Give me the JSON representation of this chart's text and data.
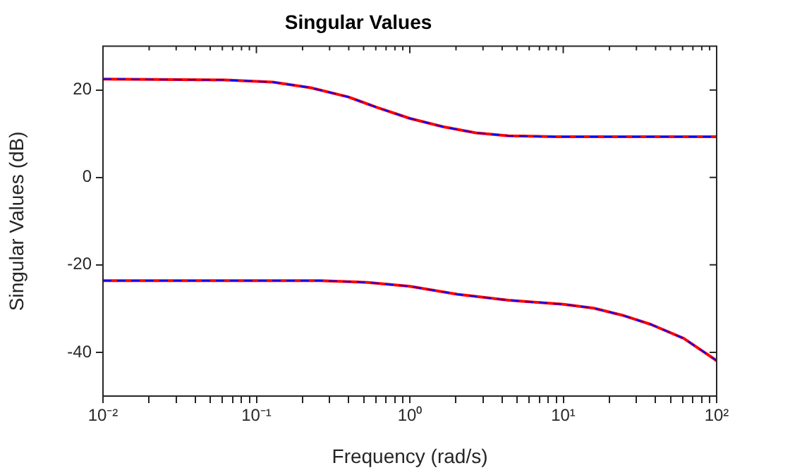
{
  "chart_data": {
    "type": "line",
    "title": "Singular Values",
    "xlabel": "Frequency (rad/s)",
    "ylabel": "Singular Values (dB)",
    "log": "x",
    "grid": false,
    "legend": false,
    "marker": "none",
    "xlim": [
      0.01,
      100
    ],
    "ylim": [
      -50,
      30
    ],
    "xticks": [
      {
        "value": 0.01,
        "label": "10⁻²"
      },
      {
        "value": 0.02,
        "label": null
      },
      {
        "value": 0.03,
        "label": null
      },
      {
        "value": 0.04,
        "label": null
      },
      {
        "value": 0.05,
        "label": null
      },
      {
        "value": 0.06,
        "label": null
      },
      {
        "value": 0.07,
        "label": null
      },
      {
        "value": 0.08,
        "label": null
      },
      {
        "value": 0.09,
        "label": null
      },
      {
        "value": 0.1,
        "label": "10⁻¹"
      },
      {
        "value": 0.2,
        "label": null
      },
      {
        "value": 0.3,
        "label": null
      },
      {
        "value": 0.4,
        "label": null
      },
      {
        "value": 0.5,
        "label": null
      },
      {
        "value": 0.6,
        "label": null
      },
      {
        "value": 0.7,
        "label": null
      },
      {
        "value": 0.8,
        "label": null
      },
      {
        "value": 0.9,
        "label": null
      },
      {
        "value": 1,
        "label": "10⁰"
      },
      {
        "value": 2,
        "label": null
      },
      {
        "value": 3,
        "label": null
      },
      {
        "value": 4,
        "label": null
      },
      {
        "value": 5,
        "label": null
      },
      {
        "value": 6,
        "label": null
      },
      {
        "value": 7,
        "label": null
      },
      {
        "value": 8,
        "label": null
      },
      {
        "value": 9,
        "label": null
      },
      {
        "value": 10,
        "label": "10¹"
      },
      {
        "value": 20,
        "label": null
      },
      {
        "value": 30,
        "label": null
      },
      {
        "value": 40,
        "label": null
      },
      {
        "value": 50,
        "label": null
      },
      {
        "value": 60,
        "label": null
      },
      {
        "value": 70,
        "label": null
      },
      {
        "value": 80,
        "label": null
      },
      {
        "value": 90,
        "label": null
      },
      {
        "value": 100,
        "label": "10²"
      }
    ],
    "yticks": [
      -40,
      -20,
      0,
      20
    ],
    "series": [
      {
        "color": "#ff0000",
        "line_style": "solid",
        "x": [
          0.01,
          0.063,
          0.128,
          0.226,
          0.398,
          0.61,
          1,
          1.64,
          2.69,
          4.4,
          8.9,
          100
        ],
        "values": [
          22.5,
          22.3,
          21.8,
          20.5,
          18.4,
          16.0,
          13.5,
          11.6,
          10.2,
          9.5,
          9.3,
          9.3
        ]
      },
      {
        "color": "#ff0000",
        "line_style": "solid",
        "x": [
          0.01,
          0.26,
          0.53,
          1,
          2.03,
          4.4,
          10,
          15.8,
          24.2,
          37.2,
          61,
          100
        ],
        "values": [
          -23.6,
          -23.6,
          -24.0,
          -24.9,
          -26.7,
          -28.1,
          -29.0,
          -29.9,
          -31.5,
          -33.6,
          -36.8,
          -41.9
        ]
      },
      {
        "color": "#0000ff",
        "line_style": "dashed",
        "x": [
          0.01,
          0.063,
          0.128,
          0.226,
          0.398,
          0.61,
          1,
          1.64,
          2.69,
          4.4,
          8.9,
          100
        ],
        "values": [
          22.5,
          22.3,
          21.8,
          20.5,
          18.4,
          16.0,
          13.5,
          11.6,
          10.2,
          9.5,
          9.3,
          9.3
        ]
      },
      {
        "color": "#0000ff",
        "line_style": "dashed",
        "x": [
          0.01,
          0.26,
          0.53,
          1,
          2.03,
          4.4,
          10,
          15.8,
          24.2,
          37.2,
          61,
          100
        ],
        "values": [
          -23.6,
          -23.6,
          -24.0,
          -24.9,
          -26.7,
          -28.1,
          -29.0,
          -29.9,
          -31.5,
          -33.6,
          -36.8,
          -41.9
        ]
      }
    ]
  }
}
